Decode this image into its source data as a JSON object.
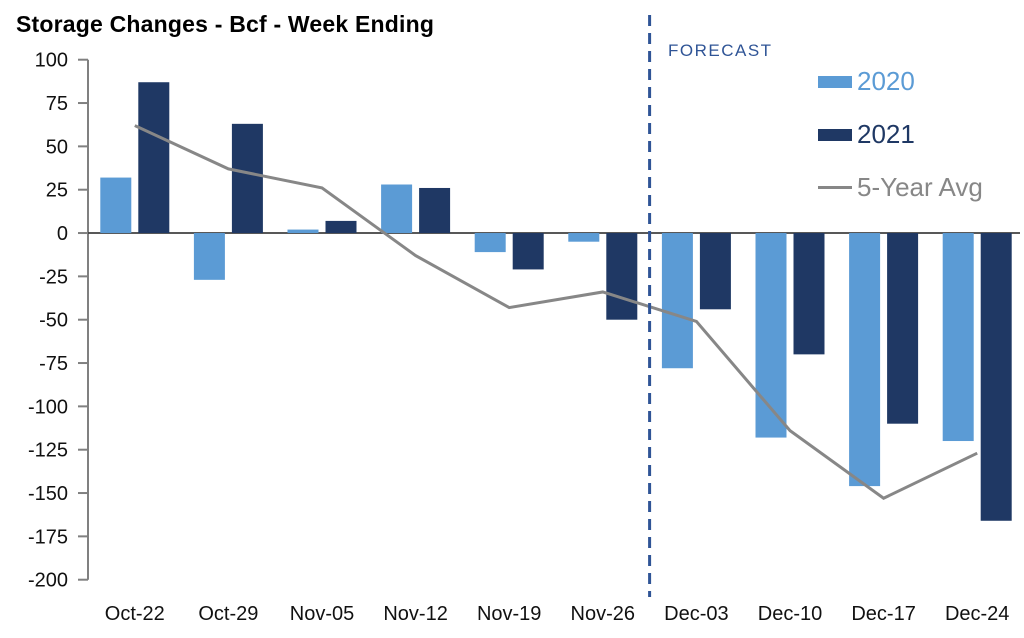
{
  "title": "Storage Changes - Bcf - Week Ending",
  "forecast_label": "FORECAST",
  "legend": [
    {
      "label": "2020",
      "color": "#5B9BD5",
      "swatch": "bar"
    },
    {
      "label": "2021",
      "color": "#1F3864",
      "swatch": "bar"
    },
    {
      "label": "5-Year Avg",
      "color": "#878787",
      "swatch": "line"
    }
  ],
  "colors": {
    "bar_2020": "#5B9BD5",
    "bar_2021": "#1F3864",
    "avg_line": "#878787",
    "forecast_divider": "#2F5496",
    "forecast_text": "#2F5496",
    "zero_line": "#404040",
    "axis": "#808080",
    "tick_text": "#111111"
  },
  "chart_data": {
    "type": "bar",
    "title": "Storage Changes - Bcf - Week Ending",
    "categories": [
      "Oct-22",
      "Oct-29",
      "Nov-05",
      "Nov-12",
      "Nov-19",
      "Nov-26",
      "Dec-03",
      "Dec-10",
      "Dec-17",
      "Dec-24"
    ],
    "series": [
      {
        "name": "2020",
        "type": "bar",
        "color": "#5B9BD5",
        "values": [
          32,
          -27,
          2,
          28,
          -11,
          -5,
          -78,
          -118,
          -146,
          -120
        ]
      },
      {
        "name": "2021",
        "type": "bar",
        "color": "#1F3864",
        "values": [
          87,
          63,
          7,
          26,
          -21,
          -50,
          -44,
          -70,
          -110,
          -166
        ]
      },
      {
        "name": "5-Year Avg",
        "type": "line",
        "color": "#878787",
        "values": [
          62,
          37,
          26,
          -13,
          -43,
          -34,
          -51,
          -114,
          -153,
          -127
        ]
      }
    ],
    "xlabel": "",
    "ylabel": "",
    "ylim": [
      -200,
      100
    ],
    "yticks": [
      100,
      75,
      50,
      25,
      0,
      -25,
      -50,
      -75,
      -100,
      -125,
      -150,
      -175,
      -200
    ],
    "grid": false,
    "legend_position": "top-right",
    "forecast_divider_after_category": "Nov-26",
    "forecast_divider_index": 6
  }
}
